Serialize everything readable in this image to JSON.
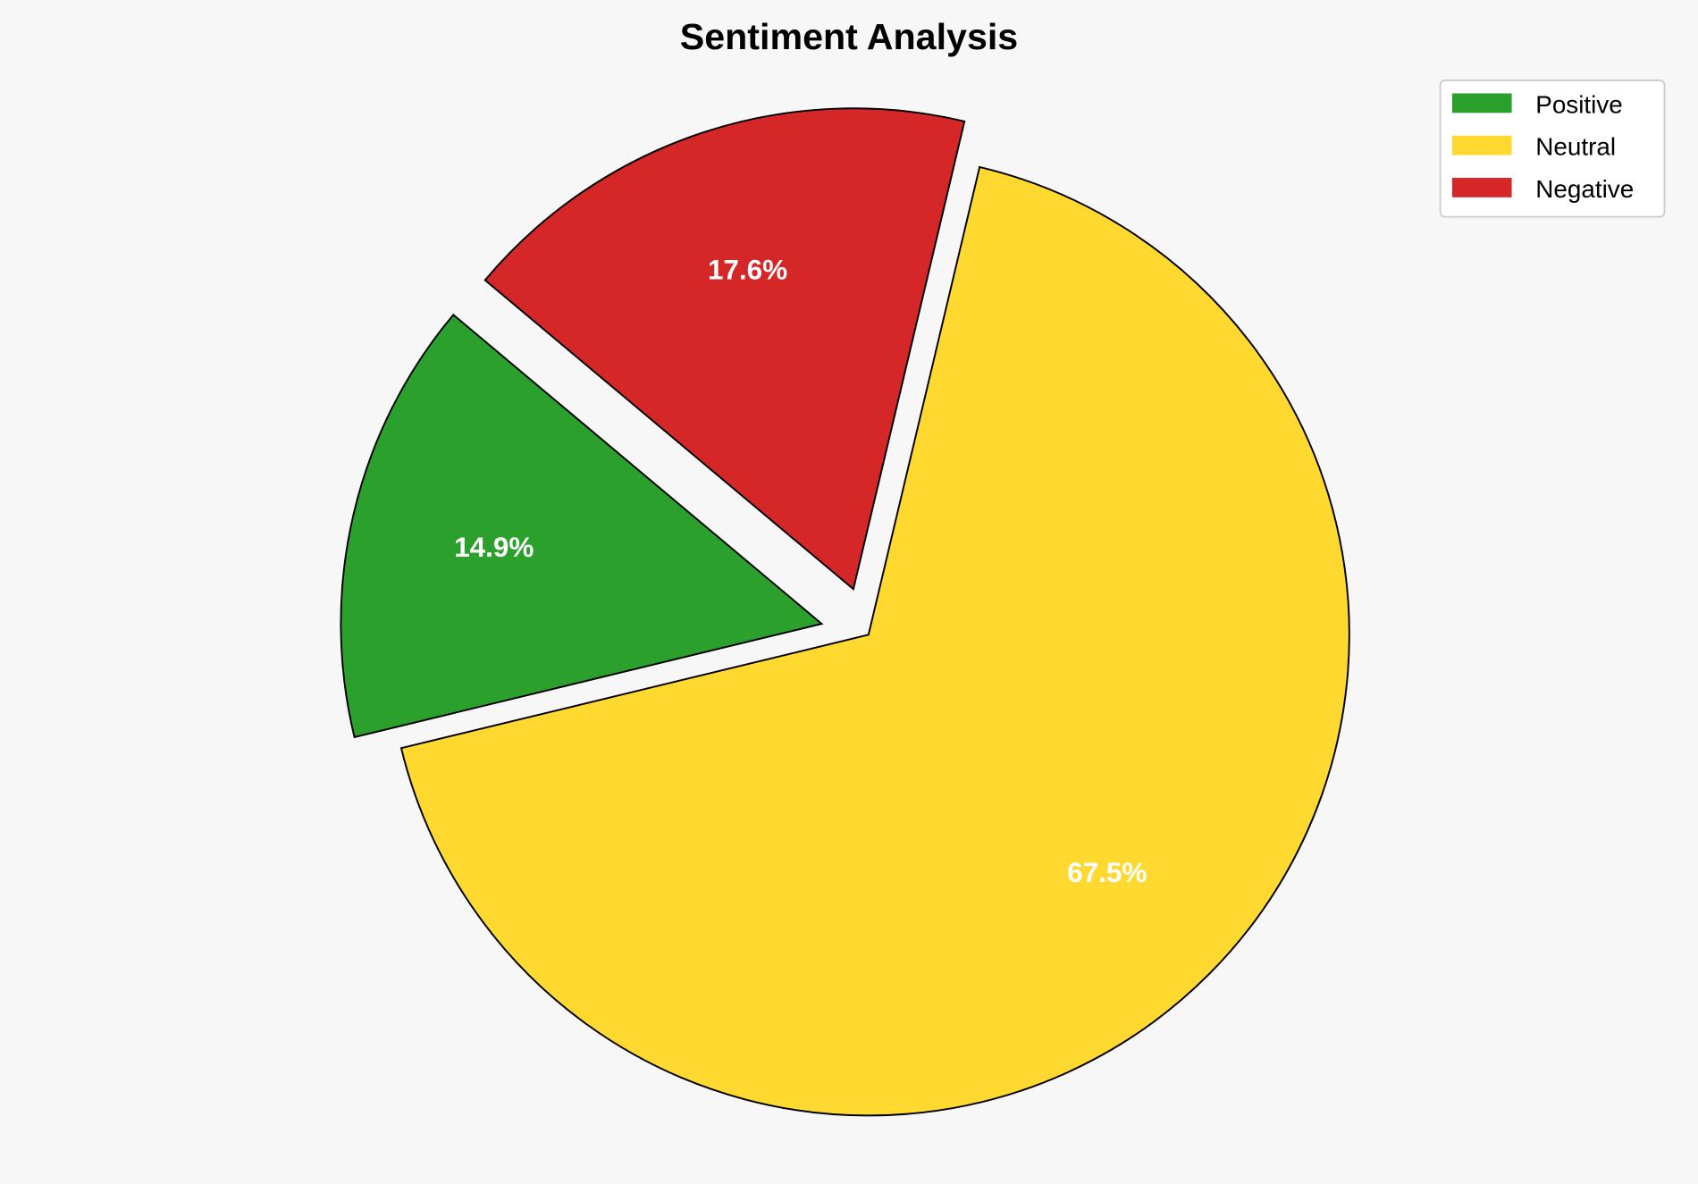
{
  "chart_data": {
    "type": "pie",
    "title": "Sentiment Analysis",
    "categories": [
      "Positive",
      "Neutral",
      "Negative"
    ],
    "values": [
      14.9,
      67.5,
      17.6
    ],
    "labels": [
      "14.9%",
      "67.5%",
      "17.6%"
    ],
    "colors": [
      "#2ca02c",
      "#ffd92f",
      "#d62728"
    ],
    "exploded": [
      true,
      false,
      true
    ],
    "start_angle_deg": 140,
    "legend": {
      "position": "top-right",
      "entries": [
        "Positive",
        "Neutral",
        "Negative"
      ]
    },
    "background": "#f7f7f7"
  }
}
